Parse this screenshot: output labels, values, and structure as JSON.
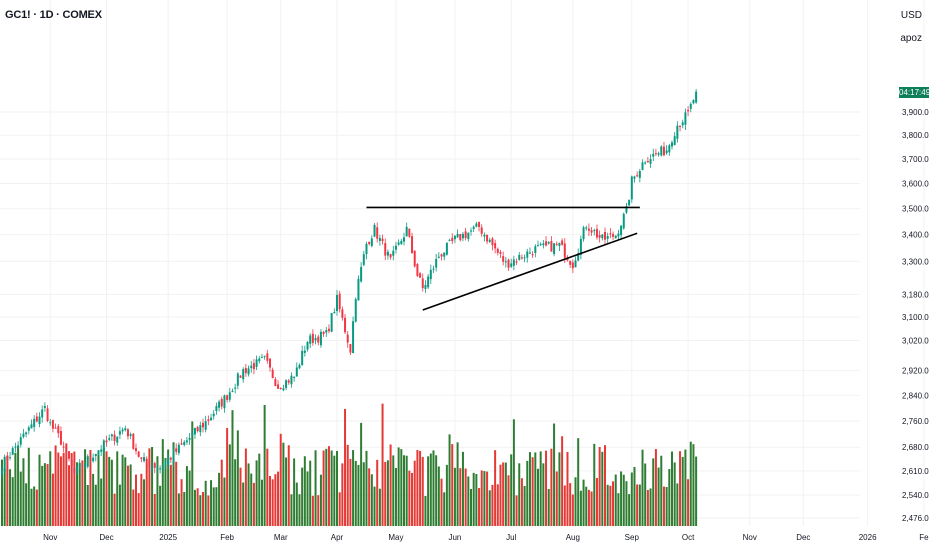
{
  "header": {
    "symbol_title": "GC1! · 1D · COMEX",
    "currency": "USD",
    "user": "apoz"
  },
  "countdown_label": "04:17:49",
  "colors": {
    "up": "#089981",
    "down": "#f23645",
    "vol_up": "#2e7d32",
    "vol_down": "#e53935",
    "grid": "#f2f2f2",
    "countdown_bg": "#0f7f5a"
  },
  "chart_data": {
    "type": "candlestick",
    "symbol": "GC1!",
    "interval": "1D",
    "exchange": "COMEX",
    "y_scale": "log",
    "y_ticks": [
      3900,
      3800,
      3700,
      3600,
      3500,
      3400,
      3300,
      3180,
      3100,
      3020,
      2920,
      2840,
      2760,
      2680,
      2610,
      2540,
      2476
    ],
    "y_tick_labels": [
      "3,900.0",
      "3,800.0",
      "3,700.0",
      "3,600.0",
      "3,500.0",
      "3,400.0",
      "3,300.0",
      "3,180.0",
      "3,100.0",
      "3,020.0",
      "2,920.0",
      "2,840.0",
      "2,760.0",
      "2,680.0",
      "2,610.0",
      "2,540.0",
      "2,476.0"
    ],
    "x_ticks": [
      {
        "label": "Nov",
        "date": "2024-11-01"
      },
      {
        "label": "Dec",
        "date": "2024-12-02"
      },
      {
        "label": "2025",
        "date": "2025-01-02"
      },
      {
        "label": "Feb",
        "date": "2025-02-03"
      },
      {
        "label": "Mar",
        "date": "2025-03-03"
      },
      {
        "label": "Apr",
        "date": "2025-04-01"
      },
      {
        "label": "May",
        "date": "2025-05-01"
      },
      {
        "label": "Jun",
        "date": "2025-06-02"
      },
      {
        "label": "Jul",
        "date": "2025-07-01"
      },
      {
        "label": "Aug",
        "date": "2025-08-01"
      },
      {
        "label": "Sep",
        "date": "2025-09-02"
      },
      {
        "label": "Oct",
        "date": "2025-10-01"
      },
      {
        "label": "Nov",
        "date": "2025-11-03"
      },
      {
        "label": "Dec",
        "date": "2025-12-01"
      },
      {
        "label": "2026",
        "date": "2026-01-02"
      },
      {
        "label": "Fe",
        "date": "2026-02-02"
      }
    ],
    "close_path": [
      [
        "2024-10-08",
        2628
      ],
      [
        "2024-10-30",
        2800
      ],
      [
        "2024-11-01",
        2750
      ],
      [
        "2024-11-07",
        2700
      ],
      [
        "2024-11-14",
        2600
      ],
      [
        "2024-11-25",
        2660
      ],
      [
        "2024-12-11",
        2740
      ],
      [
        "2024-12-19",
        2640
      ],
      [
        "2024-12-30",
        2620
      ],
      [
        "2025-01-13",
        2700
      ],
      [
        "2025-01-23",
        2765
      ],
      [
        "2025-02-03",
        2840
      ],
      [
        "2025-02-11",
        2920
      ],
      [
        "2025-02-21",
        2955
      ],
      [
        "2025-02-28",
        2870
      ],
      [
        "2025-03-10",
        2900
      ],
      [
        "2025-03-17",
        3020
      ],
      [
        "2025-03-26",
        3040
      ],
      [
        "2025-04-01",
        3160
      ],
      [
        "2025-04-08",
        2990
      ],
      [
        "2025-04-10",
        3180
      ],
      [
        "2025-04-16",
        3365
      ],
      [
        "2025-04-21",
        3420
      ],
      [
        "2025-04-29",
        3300
      ],
      [
        "2025-05-07",
        3420
      ],
      [
        "2025-05-13",
        3250
      ],
      [
        "2025-05-15",
        3200
      ],
      [
        "2025-05-23",
        3320
      ],
      [
        "2025-06-02",
        3380
      ],
      [
        "2025-06-13",
        3430
      ],
      [
        "2025-06-27",
        3290
      ],
      [
        "2025-07-14",
        3345
      ],
      [
        "2025-07-25",
        3360
      ],
      [
        "2025-08-01",
        3290
      ],
      [
        "2025-08-08",
        3440
      ],
      [
        "2025-08-18",
        3380
      ],
      [
        "2025-08-25",
        3400
      ],
      [
        "2025-08-29",
        3490
      ],
      [
        "2025-09-02",
        3610
      ],
      [
        "2025-09-09",
        3700
      ],
      [
        "2025-09-19",
        3740
      ],
      [
        "2025-09-25",
        3845
      ],
      [
        "2025-10-01",
        3890
      ],
      [
        "2025-10-06",
        3990
      ]
    ],
    "drawings": [
      {
        "type": "horizontal-resistance",
        "from": [
          "2025-04-16",
          3505
        ],
        "to": [
          "2025-09-05",
          3505
        ]
      },
      {
        "type": "rising-support",
        "from": [
          "2025-05-15",
          3125
        ],
        "to": [
          "2025-09-04",
          3405
        ]
      }
    ]
  }
}
